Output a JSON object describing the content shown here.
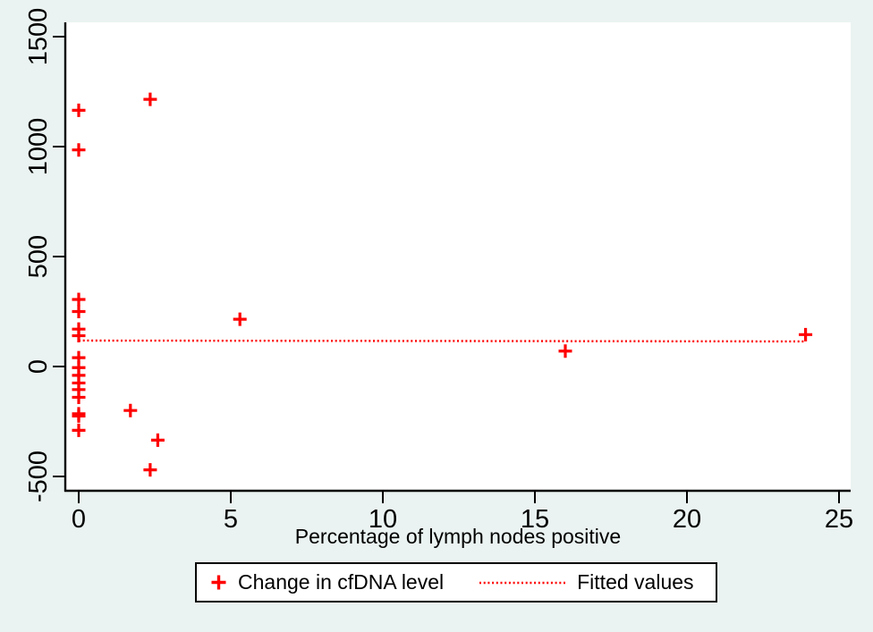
{
  "figure": {
    "background": "#eaf3f1",
    "plot_background": "#ffffff",
    "axis_color": "#000000",
    "accent_red": "#fe0000"
  },
  "chart_data": {
    "type": "scatter",
    "title": "",
    "xlabel": "Percentage of lymph nodes positive",
    "ylabel": "",
    "xlim": [
      -0.44,
      25.4
    ],
    "ylim": [
      -565,
      1565
    ],
    "xticks": [
      0,
      5,
      10,
      15,
      20,
      25
    ],
    "yticks": [
      -500,
      0,
      500,
      1000,
      1500
    ],
    "grid": false,
    "legend_position": "bottom-center",
    "series": [
      {
        "name": "Change in cfDNA level",
        "type": "scatter",
        "marker": "plus",
        "color": "#fe0000",
        "points": [
          [
            2.35,
            1215
          ],
          [
            0,
            1165
          ],
          [
            0,
            985
          ],
          [
            0,
            305
          ],
          [
            0,
            250
          ],
          [
            5.3,
            215
          ],
          [
            0,
            170
          ],
          [
            23.9,
            145
          ],
          [
            0,
            140
          ],
          [
            16,
            70
          ],
          [
            0,
            40
          ],
          [
            0,
            -5
          ],
          [
            0,
            -40
          ],
          [
            0,
            -75
          ],
          [
            0,
            -105
          ],
          [
            0,
            -140
          ],
          [
            1.7,
            -200
          ],
          [
            0,
            -215
          ],
          [
            0,
            -225
          ],
          [
            0,
            -290
          ],
          [
            2.6,
            -335
          ],
          [
            2.35,
            -470
          ]
        ]
      },
      {
        "name": "Fitted values",
        "type": "line",
        "style": "dotted",
        "color": "#fe0000",
        "points": [
          [
            0,
            118
          ],
          [
            23.9,
            114
          ]
        ]
      }
    ]
  },
  "legend": {
    "items": [
      {
        "label": "Change in cfDNA level",
        "marker": "plus"
      },
      {
        "label": "Fitted values",
        "marker": "dotted-line"
      }
    ]
  }
}
